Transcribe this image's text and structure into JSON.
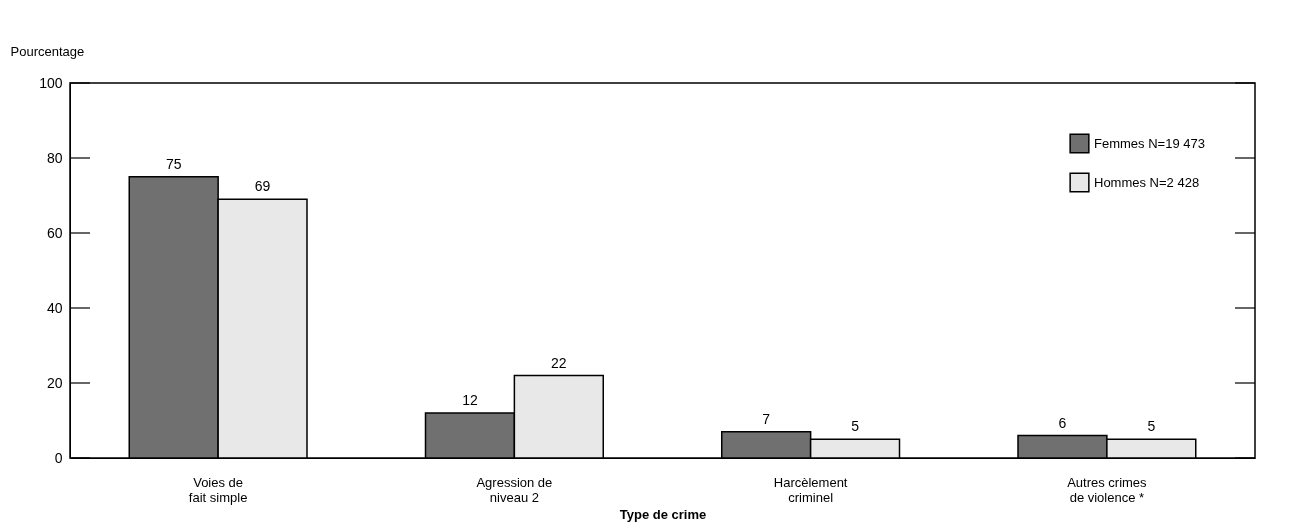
{
  "chart_data": {
    "type": "bar",
    "ylabel": "Pourcentage",
    "xlabel": "Type de crime",
    "categories": [
      "Voies de\nfait simple",
      "Agression de\nniveau 2",
      "Harcèlement\ncriminel",
      "Autres crimes\nde violence *"
    ],
    "series": [
      {
        "name": "Femmes N=19 473",
        "color": "#707070",
        "values": [
          75,
          12,
          7,
          6
        ]
      },
      {
        "name": "Hommes N=2 428",
        "color": "#e8e8e8",
        "values": [
          69,
          22,
          5,
          5
        ]
      }
    ],
    "ylim": [
      0,
      100
    ],
    "yticks": [
      0,
      20,
      40,
      60,
      80,
      100
    ],
    "grid": false,
    "legend": "top right",
    "data_labels": true
  }
}
